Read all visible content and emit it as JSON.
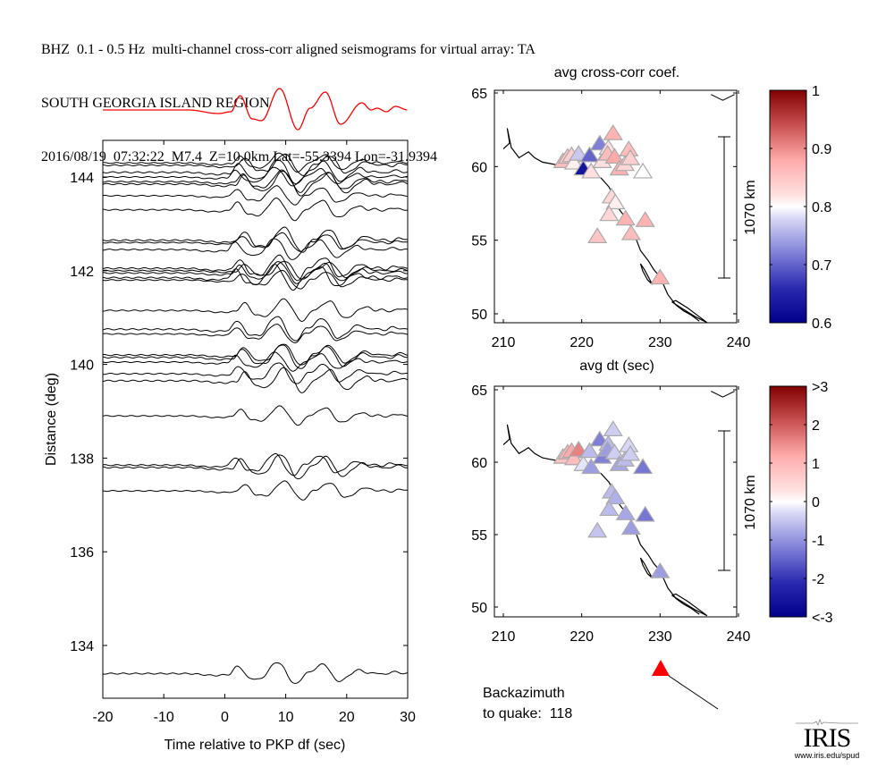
{
  "header": {
    "line1": "BHZ  0.1 - 0.5 Hz  multi-channel cross-corr aligned seismograms for virtual array: TA",
    "line2": "SOUTH GEORGIA ISLAND REGION",
    "line3": "2016/08/19  07:32:22  M7.4  Z=10.0km Lat=-55.3394 Lon=-31.9394"
  },
  "colors": {
    "stack_trace": "#ff0000",
    "trace": "#000000",
    "backazimuth_marker": "#ff0000"
  },
  "chart_data": [
    {
      "id": "seismograms",
      "type": "line",
      "title": "",
      "xlabel": "Time relative to PKP df (sec)",
      "ylabel": "Distance (deg)",
      "xlim": [
        -20,
        30
      ],
      "ylim": [
        132.3,
        144.8
      ],
      "xticks": [
        -20,
        -10,
        0,
        10,
        20,
        30
      ],
      "xtick_labels": [
        "-20",
        "-10",
        "0",
        "10",
        "20",
        "30"
      ],
      "yticks": [
        134,
        136,
        138,
        140,
        142,
        144
      ],
      "ytick_labels": [
        "134",
        "136",
        "138",
        "140",
        "142",
        "144"
      ],
      "stack_trace": {
        "name": "stack",
        "color": "#ff0000",
        "peaks": [
          {
            "t": -20,
            "a": 0.0
          },
          {
            "t": -6,
            "a": 0.0
          },
          {
            "t": -1,
            "a": -0.2
          },
          {
            "t": 1,
            "a": -0.1
          },
          {
            "t": 2.5,
            "a": 0.8
          },
          {
            "t": 4.5,
            "a": -0.5
          },
          {
            "t": 6,
            "a": -0.6
          },
          {
            "t": 9,
            "a": 1.2
          },
          {
            "t": 12,
            "a": -1.1
          },
          {
            "t": 14,
            "a": 0.1
          },
          {
            "t": 16.5,
            "a": 1.0
          },
          {
            "t": 19,
            "a": -0.8
          },
          {
            "t": 22.5,
            "a": 0.4
          },
          {
            "t": 24,
            "a": 0.0
          },
          {
            "t": 25,
            "a": 0.1
          },
          {
            "t": 26.5,
            "a": -0.1
          },
          {
            "t": 28,
            "a": 0.2
          },
          {
            "t": 30,
            "a": 0.0
          }
        ]
      },
      "trace_distances": [
        144.3,
        144.25,
        144.1,
        144.0,
        143.9,
        143.85,
        143.6,
        143.3,
        142.65,
        142.6,
        142.45,
        142.05,
        142.0,
        141.95,
        141.85,
        141.8,
        141.15,
        140.75,
        140.65,
        140.2,
        140.15,
        140.05,
        139.8,
        139.65,
        138.9,
        137.85,
        137.8,
        137.3,
        133.4
      ]
    },
    {
      "id": "map-cc",
      "type": "scatter",
      "title": "avg cross-corr coef.",
      "xlabel": "avg dt (sec)",
      "xlim": [
        210,
        240
      ],
      "ylim": [
        50,
        65
      ],
      "xticks": [
        210,
        220,
        230,
        240
      ],
      "yticks": [
        50,
        55,
        60,
        65
      ],
      "scale_bar_label": "1070 km",
      "colorbar": {
        "min": 0.6,
        "max": 1.0,
        "center": 0.8,
        "ticks": [
          "1",
          "0.9",
          "0.8",
          "0.7",
          "0.6"
        ]
      },
      "stations": [
        {
          "lon": 217.6,
          "lat": 60.3,
          "v": 0.86
        },
        {
          "lon": 218.2,
          "lat": 60.6,
          "v": 0.85
        },
        {
          "lon": 218.7,
          "lat": 60.7,
          "v": 0.84
        },
        {
          "lon": 219.0,
          "lat": 60.2,
          "v": 0.81
        },
        {
          "lon": 219.6,
          "lat": 60.8,
          "v": 0.77
        },
        {
          "lon": 220.2,
          "lat": 59.8,
          "v": 0.63
        },
        {
          "lon": 221.0,
          "lat": 60.7,
          "v": 0.7
        },
        {
          "lon": 221.2,
          "lat": 59.6,
          "v": 0.82
        },
        {
          "lon": 222.3,
          "lat": 61.5,
          "v": 0.72
        },
        {
          "lon": 222.6,
          "lat": 60.3,
          "v": 0.82
        },
        {
          "lon": 223.4,
          "lat": 61.2,
          "v": 0.82
        },
        {
          "lon": 223.3,
          "lat": 60.8,
          "v": 0.86
        },
        {
          "lon": 224.0,
          "lat": 62.2,
          "v": 0.87
        },
        {
          "lon": 224.2,
          "lat": 60.6,
          "v": 0.88
        },
        {
          "lon": 224.8,
          "lat": 59.8,
          "v": 0.87
        },
        {
          "lon": 225.5,
          "lat": 60.1,
          "v": 0.83
        },
        {
          "lon": 226.0,
          "lat": 61.1,
          "v": 0.86
        },
        {
          "lon": 226.2,
          "lat": 60.5,
          "v": 0.84
        },
        {
          "lon": 227.8,
          "lat": 59.6,
          "v": 0.8
        },
        {
          "lon": 223.8,
          "lat": 57.9,
          "v": 0.83
        },
        {
          "lon": 224.3,
          "lat": 57.5,
          "v": 0.81
        },
        {
          "lon": 223.5,
          "lat": 56.7,
          "v": 0.83
        },
        {
          "lon": 225.6,
          "lat": 56.4,
          "v": 0.87
        },
        {
          "lon": 226.3,
          "lat": 55.4,
          "v": 0.86
        },
        {
          "lon": 228.1,
          "lat": 56.3,
          "v": 0.87
        },
        {
          "lon": 230.0,
          "lat": 52.4,
          "v": 0.87
        },
        {
          "lon": 222.0,
          "lat": 55.2,
          "v": 0.85
        }
      ]
    },
    {
      "id": "map-dt",
      "type": "scatter",
      "title": "",
      "xlim": [
        210,
        240
      ],
      "ylim": [
        50,
        65
      ],
      "xticks": [
        210,
        220,
        230,
        240
      ],
      "yticks": [
        50,
        55,
        60,
        65
      ],
      "scale_bar_label": "1070 km",
      "colorbar": {
        "min": -3,
        "max": 3,
        "center": 0,
        "ticks": [
          ">3",
          "2",
          "1",
          "0",
          "-1",
          "-2",
          "<-3"
        ]
      },
      "stations": [
        {
          "lon": 217.6,
          "lat": 60.3,
          "v": 0.8
        },
        {
          "lon": 218.2,
          "lat": 60.6,
          "v": 1.0
        },
        {
          "lon": 218.7,
          "lat": 60.7,
          "v": 1.2
        },
        {
          "lon": 219.0,
          "lat": 60.2,
          "v": 0.9
        },
        {
          "lon": 219.6,
          "lat": 60.8,
          "v": 1.6
        },
        {
          "lon": 220.2,
          "lat": 59.8,
          "v": -0.2
        },
        {
          "lon": 221.0,
          "lat": 60.7,
          "v": -0.6
        },
        {
          "lon": 221.2,
          "lat": 59.6,
          "v": -0.9
        },
        {
          "lon": 222.3,
          "lat": 61.5,
          "v": -1.2
        },
        {
          "lon": 222.6,
          "lat": 60.3,
          "v": -1.2
        },
        {
          "lon": 223.4,
          "lat": 61.2,
          "v": -0.6
        },
        {
          "lon": 223.3,
          "lat": 60.8,
          "v": -0.9
        },
        {
          "lon": 224.0,
          "lat": 62.2,
          "v": -0.4
        },
        {
          "lon": 224.2,
          "lat": 60.6,
          "v": -0.4
        },
        {
          "lon": 224.8,
          "lat": 59.8,
          "v": -0.8
        },
        {
          "lon": 225.5,
          "lat": 60.1,
          "v": -0.6
        },
        {
          "lon": 226.0,
          "lat": 61.1,
          "v": -0.3
        },
        {
          "lon": 226.2,
          "lat": 60.5,
          "v": -0.4
        },
        {
          "lon": 227.8,
          "lat": 59.6,
          "v": -1.3
        },
        {
          "lon": 223.8,
          "lat": 57.9,
          "v": -0.6
        },
        {
          "lon": 224.3,
          "lat": 57.5,
          "v": -0.7
        },
        {
          "lon": 223.5,
          "lat": 56.7,
          "v": -0.6
        },
        {
          "lon": 225.6,
          "lat": 56.4,
          "v": -0.8
        },
        {
          "lon": 226.3,
          "lat": 55.4,
          "v": -0.9
        },
        {
          "lon": 228.1,
          "lat": 56.3,
          "v": -1.3
        },
        {
          "lon": 230.0,
          "lat": 52.4,
          "v": -0.9
        },
        {
          "lon": 222.0,
          "lat": 55.2,
          "v": -0.5
        }
      ]
    }
  ],
  "backazimuth": {
    "label_line1": "Backazimuth",
    "label_line2": "to quake:  118",
    "value_deg": 118
  },
  "logo": {
    "name": "IRIS",
    "url": "www.iris.edu/spud"
  }
}
